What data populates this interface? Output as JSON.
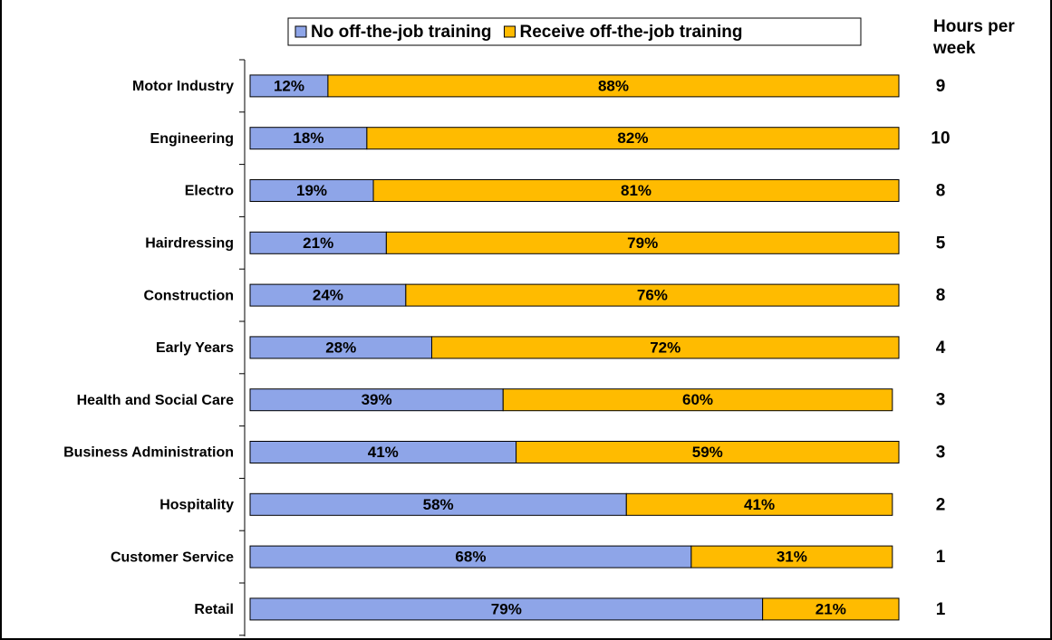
{
  "chart_data": {
    "type": "stacked_bar_horizontal",
    "categories": [
      "Motor Industry",
      "Engineering",
      "Electro",
      "Hairdressing",
      "Construction",
      "Early Years",
      "Health and Social Care",
      "Business Administration",
      "Hospitality",
      "Customer Service",
      "Retail"
    ],
    "series": [
      {
        "name": "No off-the-job training",
        "color": "#8ea5e8",
        "values": [
          12,
          18,
          19,
          21,
          24,
          28,
          39,
          41,
          58,
          68,
          79
        ],
        "value_labels": [
          "12%",
          "18%",
          "19%",
          "21%",
          "24%",
          "28%",
          "39%",
          "41%",
          "58%",
          "68%",
          "79%"
        ]
      },
      {
        "name": "Receive off-the-job training",
        "color": "#ffbb00",
        "values": [
          88,
          82,
          81,
          79,
          76,
          72,
          60,
          59,
          41,
          31,
          21
        ],
        "value_labels": [
          "88%",
          "82%",
          "81%",
          "79%",
          "76%",
          "72%",
          "60%",
          "59%",
          "41%",
          "31%",
          "21%"
        ]
      }
    ],
    "xlim": [
      0,
      100
    ],
    "hours_label": "Hours per week",
    "hours": [
      9,
      10,
      8,
      5,
      8,
      4,
      3,
      3,
      2,
      1,
      1
    ]
  }
}
